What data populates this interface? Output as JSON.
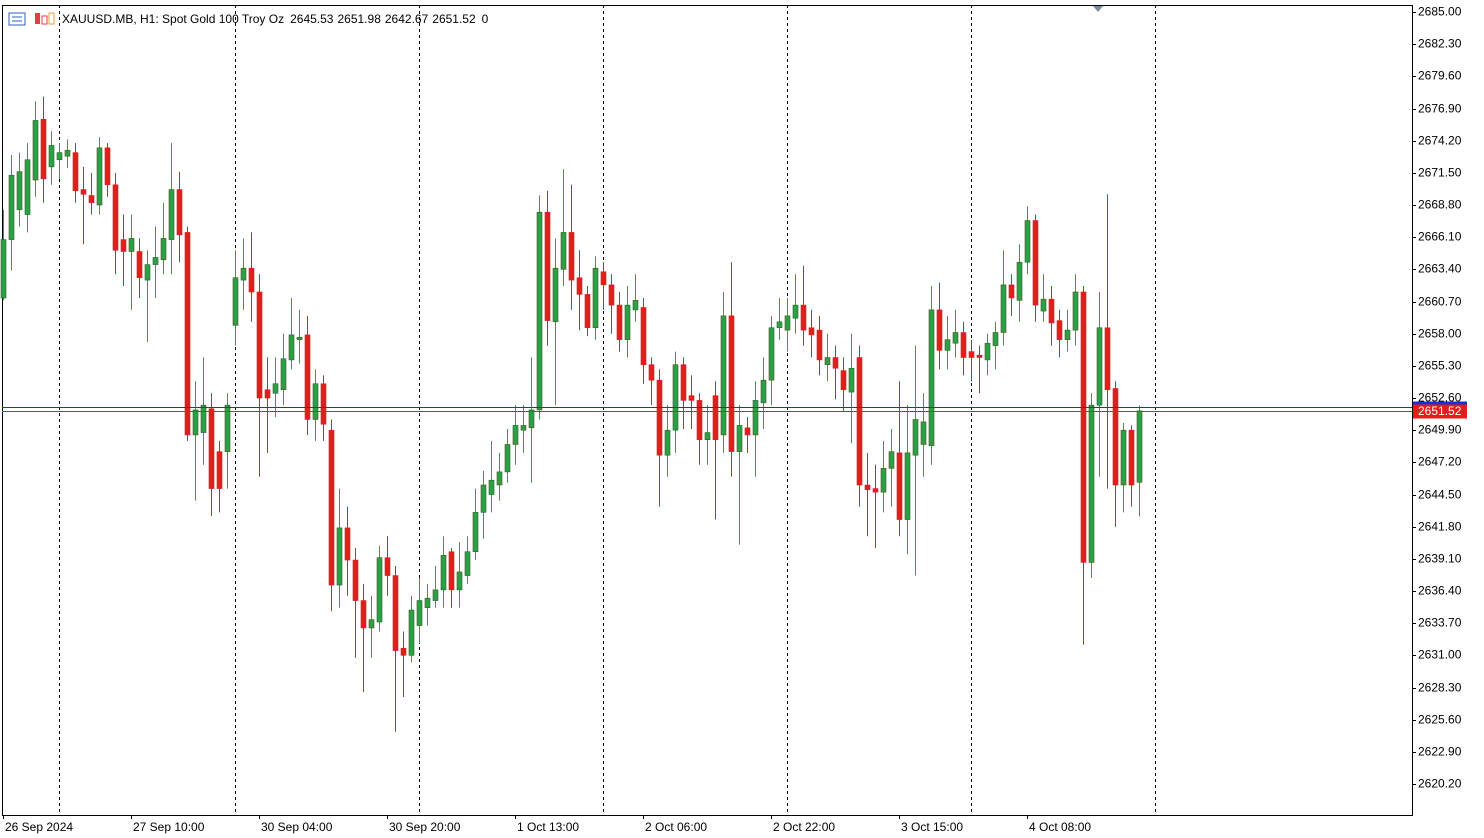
{
  "chart_data": {
    "type": "candlestick",
    "symbol": "XAUUSD.MB, H1:  Spot Gold 100 Troy Oz",
    "volume": 0,
    "categories": [
      "26 Sep 2024",
      null,
      null,
      null,
      null,
      null,
      null,
      null,
      null,
      null,
      null,
      null,
      null,
      null,
      null,
      null,
      "27 Sep 10:00",
      null,
      null,
      null,
      null,
      null,
      null,
      null,
      null,
      null,
      null,
      null,
      null,
      null,
      null,
      null,
      "30 Sep 04:00",
      null,
      null,
      null,
      null,
      null,
      null,
      null,
      null,
      null,
      null,
      null,
      null,
      null,
      null,
      null,
      "30 Sep 20:00",
      null,
      null,
      null,
      null,
      null,
      null,
      null,
      null,
      null,
      null,
      null,
      null,
      null,
      null,
      null,
      "1 Oct 13:00",
      null,
      null,
      null,
      null,
      null,
      null,
      null,
      null,
      null,
      null,
      null,
      null,
      null,
      null,
      null,
      "2 Oct 06:00",
      null,
      null,
      null,
      null,
      null,
      null,
      null,
      null,
      null,
      null,
      null,
      null,
      null,
      null,
      null,
      "2 Oct 22:00",
      null,
      null,
      null,
      null,
      null,
      null,
      null,
      null,
      null,
      null,
      null,
      null,
      null,
      null,
      null,
      "3 Oct 15:00",
      null,
      null,
      null,
      null,
      null,
      null,
      null,
      null,
      null,
      null,
      null,
      null,
      null,
      null,
      null,
      "4 Oct 08:00",
      null,
      null,
      null,
      null,
      null,
      null,
      null,
      null,
      null,
      null,
      null,
      null,
      null,
      null
    ],
    "open": [
      2661.0,
      2665.9,
      2668.4,
      2668.0,
      2670.9,
      2676.0,
      2672.0,
      2672.6,
      2672.9,
      2673.2,
      2670.1,
      2669.6,
      2668.8,
      2673.6,
      2670.5,
      2665.9,
      2664.9,
      2664.9,
      2662.5,
      2663.8,
      2664.2,
      2665.9,
      2670.1,
      2666.5,
      2649.5,
      2649.7,
      2651.7,
      2648.1,
      2648.1,
      2658.7,
      2662.5,
      2663.5,
      2661.5,
      2653.3,
      2653.0,
      2653.3,
      2655.8,
      2657.5,
      2657.9,
      2650.8,
      2653.8,
      2649.9,
      2636.9,
      2641.7,
      2639.0,
      2635.6,
      2633.3,
      2633.8,
      2639.2,
      2637.7,
      2631.6,
      2631.0,
      2633.5,
      2635.0,
      2635.6,
      2636.5,
      2639.7,
      2636.5,
      2637.7,
      2639.7,
      2643.0,
      2644.5,
      2645.3,
      2646.4,
      2648.7,
      2649.9,
      2650.1,
      2651.6,
      2668.2,
      2659.0,
      2663.4,
      2666.5,
      2662.7,
      2661.3,
      2658.5,
      2663.2,
      2662.1,
      2660.4,
      2657.5,
      2660.0,
      2660.2,
      2655.4,
      2654.1,
      2647.8,
      2649.9,
      2655.4,
      2652.8,
      2652.4,
      2649.1,
      2652.8,
      2649.5,
      2659.5,
      2648.1,
      2650.1,
      2649.5,
      2652.2,
      2654.1,
      2658.5,
      2658.3,
      2659.3,
      2660.4,
      2658.5,
      2658.3,
      2655.4,
      2656.0,
      2654.9,
      2653.1,
      2656.0,
      2645.3,
      2645.0,
      2644.7,
      2646.7,
      2648.0,
      2642.4,
      2647.8,
      2648.7,
      2648.6,
      2660.0,
      2656.6,
      2657.2,
      2658.1,
      2656.5,
      2656.2,
      2655.8,
      2657.0,
      2658.1,
      2662.1,
      2660.8,
      2664.0,
      2667.5,
      2659.9,
      2660.9,
      2659.1,
      2657.5,
      2658.3,
      2661.5,
      2638.8,
      2652.0,
      2658.5,
      2653.4,
      2645.3,
      2649.9,
      2645.53
    ],
    "high": [
      2668.4,
      2673.0,
      2673.2,
      2674.0,
      2677.5,
      2677.9,
      2675.0,
      2674.0,
      2674.3,
      2674.0,
      2672.0,
      2671.5,
      2674.5,
      2674.0,
      2671.5,
      2668.0,
      2668.0,
      2666.0,
      2665.0,
      2667.0,
      2669.0,
      2674.0,
      2671.6,
      2667.0,
      2654.0,
      2656.0,
      2653.0,
      2649.0,
      2653.0,
      2665.0,
      2666.0,
      2666.5,
      2663.0,
      2656.0,
      2656.0,
      2658.0,
      2661.0,
      2660.0,
      2659.5,
      2655.0,
      2654.5,
      2650.8,
      2645.0,
      2643.5,
      2640.0,
      2637.0,
      2636.0,
      2640.2,
      2641.0,
      2638.5,
      2633.0,
      2636.0,
      2637.5,
      2637.0,
      2638.5,
      2641.0,
      2640.0,
      2640.5,
      2641.0,
      2645.0,
      2646.5,
      2649.0,
      2648.0,
      2650.0,
      2652.0,
      2652.0,
      2656.0,
      2669.6,
      2670.0,
      2666.0,
      2671.8,
      2670.5,
      2665.0,
      2662.0,
      2664.5,
      2664.0,
      2663.0,
      2661.5,
      2662.0,
      2663.0,
      2661.0,
      2656.0,
      2655.0,
      2652.0,
      2656.5,
      2656.0,
      2654.5,
      2653.0,
      2652.0,
      2654.0,
      2661.5,
      2664.0,
      2652.0,
      2651.0,
      2654.0,
      2656.0,
      2659.5,
      2661.0,
      2661.0,
      2663.0,
      2663.7,
      2660.0,
      2659.5,
      2658.0,
      2657.0,
      2656.0,
      2658.0,
      2657.0,
      2648.0,
      2647.0,
      2649.0,
      2650.0,
      2654.0,
      2652.0,
      2657.0,
      2653.0,
      2662.0,
      2662.3,
      2659.5,
      2660.0,
      2659.0,
      2657.5,
      2657.0,
      2658.0,
      2659.0,
      2665.0,
      2663.0,
      2665.5,
      2668.7,
      2668.0,
      2663.0,
      2662.0,
      2660.0,
      2660.0,
      2663.0,
      2662.0,
      2653.0,
      2661.5,
      2669.7,
      2654.0,
      2650.5,
      2650.3,
      2651.98
    ],
    "low": [
      2660.8,
      2663.3,
      2667.0,
      2666.5,
      2669.5,
      2669.0,
      2670.5,
      2671.0,
      2671.9,
      2669.0,
      2665.5,
      2668.0,
      2668.0,
      2669.5,
      2663.0,
      2662.0,
      2660.0,
      2661.0,
      2657.3,
      2661.0,
      2663.0,
      2663.0,
      2664.0,
      2649.0,
      2644.0,
      2647.0,
      2642.7,
      2643.0,
      2645.0,
      2657.0,
      2660.0,
      2659.0,
      2646.0,
      2648.0,
      2651.0,
      2652.0,
      2655.0,
      2655.5,
      2649.5,
      2649.0,
      2649.0,
      2634.7,
      2635.0,
      2636.0,
      2630.8,
      2627.9,
      2630.8,
      2633.0,
      2636.0,
      2624.6,
      2627.5,
      2630.4,
      2632.0,
      2633.5,
      2635.0,
      2635.0,
      2635.0,
      2635.0,
      2637.0,
      2639.0,
      2640.8,
      2643.0,
      2644.0,
      2645.5,
      2647.0,
      2648.0,
      2645.5,
      2650.8,
      2657.0,
      2652.0,
      2662.0,
      2660.0,
      2658.3,
      2657.8,
      2657.5,
      2660.0,
      2658.0,
      2656.5,
      2656.0,
      2659.0,
      2653.8,
      2652.0,
      2643.5,
      2646.0,
      2648.0,
      2650.0,
      2650.0,
      2647.0,
      2647.0,
      2642.4,
      2648.0,
      2646.0,
      2640.3,
      2648.0,
      2646.0,
      2650.0,
      2652.0,
      2657.5,
      2656.5,
      2658.0,
      2657.0,
      2656.0,
      2654.5,
      2654.0,
      2652.5,
      2651.5,
      2648.8,
      2643.5,
      2641.0,
      2640.0,
      2643.0,
      2643.5,
      2641.0,
      2639.5,
      2637.7,
      2646.0,
      2647.0,
      2655.0,
      2655.0,
      2656.0,
      2654.5,
      2654.0,
      2653.0,
      2654.5,
      2655.0,
      2657.0,
      2659.5,
      2659.0,
      2663.0,
      2659.0,
      2659.0,
      2657.0,
      2656.0,
      2656.5,
      2657.0,
      2631.9,
      2637.5,
      2646.0,
      2645.0,
      2641.8,
      2643.0,
      2643.5,
      2642.67
    ],
    "close": [
      2665.9,
      2671.3,
      2671.6,
      2672.6,
      2675.9,
      2671.0,
      2673.8,
      2673.2,
      2673.4,
      2670.0,
      2669.7,
      2669.0,
      2673.6,
      2670.5,
      2665.0,
      2664.9,
      2666.0,
      2662.7,
      2663.8,
      2664.4,
      2666.0,
      2670.1,
      2666.3,
      2649.5,
      2651.6,
      2652.0,
      2645.0,
      2645.0,
      2652.0,
      2662.7,
      2663.5,
      2661.5,
      2652.6,
      2652.6,
      2653.8,
      2655.9,
      2657.9,
      2657.7,
      2650.8,
      2653.8,
      2650.4,
      2636.9,
      2641.7,
      2639.0,
      2635.6,
      2633.3,
      2634.0,
      2639.2,
      2637.7,
      2631.4,
      2631.0,
      2634.8,
      2635.6,
      2635.8,
      2636.5,
      2639.4,
      2636.5,
      2638.0,
      2639.7,
      2643.0,
      2645.3,
      2645.7,
      2646.4,
      2648.7,
      2650.3,
      2650.3,
      2651.6,
      2668.2,
      2659.1,
      2663.5,
      2666.5,
      2662.5,
      2661.3,
      2658.5,
      2663.5,
      2662.1,
      2660.4,
      2657.5,
      2660.4,
      2660.8,
      2655.4,
      2654.1,
      2647.8,
      2649.9,
      2655.4,
      2652.4,
      2652.4,
      2649.1,
      2649.7,
      2649.1,
      2659.5,
      2648.1,
      2650.3,
      2649.5,
      2652.4,
      2654.1,
      2658.5,
      2659.0,
      2659.5,
      2660.4,
      2658.3,
      2657.9,
      2655.8,
      2656.0,
      2655.1,
      2653.3,
      2655.1,
      2645.3,
      2644.9,
      2644.7,
      2646.7,
      2648.1,
      2642.4,
      2648.0,
      2650.8,
      2650.6,
      2660.0,
      2656.6,
      2657.5,
      2658.1,
      2656.0,
      2656.0,
      2656.0,
      2657.2,
      2658.1,
      2662.1,
      2661.0,
      2664.0,
      2667.5,
      2660.4,
      2660.9,
      2658.9,
      2657.5,
      2658.3,
      2661.5,
      2638.8,
      2652.0,
      2658.5,
      2653.3,
      2645.3,
      2649.9,
      2645.3,
      2651.52
    ],
    "up_color": "#2f9e44",
    "down_color": "#e41c1c",
    "ask": 2651.85,
    "ylim": [
      2617.6,
      2685.59
    ],
    "yticks": [
      {
        "value": 2685.0,
        "label": "2685.00"
      },
      {
        "value": 2682.3,
        "label": "2682.30"
      },
      {
        "value": 2679.6,
        "label": "2679.60"
      },
      {
        "value": 2676.9,
        "label": "2676.90"
      },
      {
        "value": 2674.2,
        "label": "2674.20"
      },
      {
        "value": 2671.5,
        "label": "2671.50"
      },
      {
        "value": 2668.8,
        "label": "2668.80"
      },
      {
        "value": 2666.1,
        "label": "2666.10"
      },
      {
        "value": 2663.4,
        "label": "2663.40"
      },
      {
        "value": 2660.7,
        "label": "2660.70"
      },
      {
        "value": 2658.0,
        "label": "2658.00"
      },
      {
        "value": 2655.3,
        "label": "2655.30"
      },
      {
        "value": 2652.6,
        "label": "2652.60"
      },
      {
        "value": 2649.9,
        "label": "2649.90"
      },
      {
        "value": 2647.2,
        "label": "2647.20"
      },
      {
        "value": 2644.5,
        "label": "2644.50"
      },
      {
        "value": 2641.8,
        "label": "2641.80"
      },
      {
        "value": 2639.1,
        "label": "2639.10"
      },
      {
        "value": 2636.4,
        "label": "2636.40"
      },
      {
        "value": 2633.7,
        "label": "2633.70"
      },
      {
        "value": 2631.0,
        "label": "2631.00"
      },
      {
        "value": 2628.3,
        "label": "2628.30"
      },
      {
        "value": 2625.6,
        "label": "2625.60"
      },
      {
        "value": 2622.9,
        "label": "2622.90"
      },
      {
        "value": 2620.2,
        "label": "2620.20"
      }
    ]
  }
}
